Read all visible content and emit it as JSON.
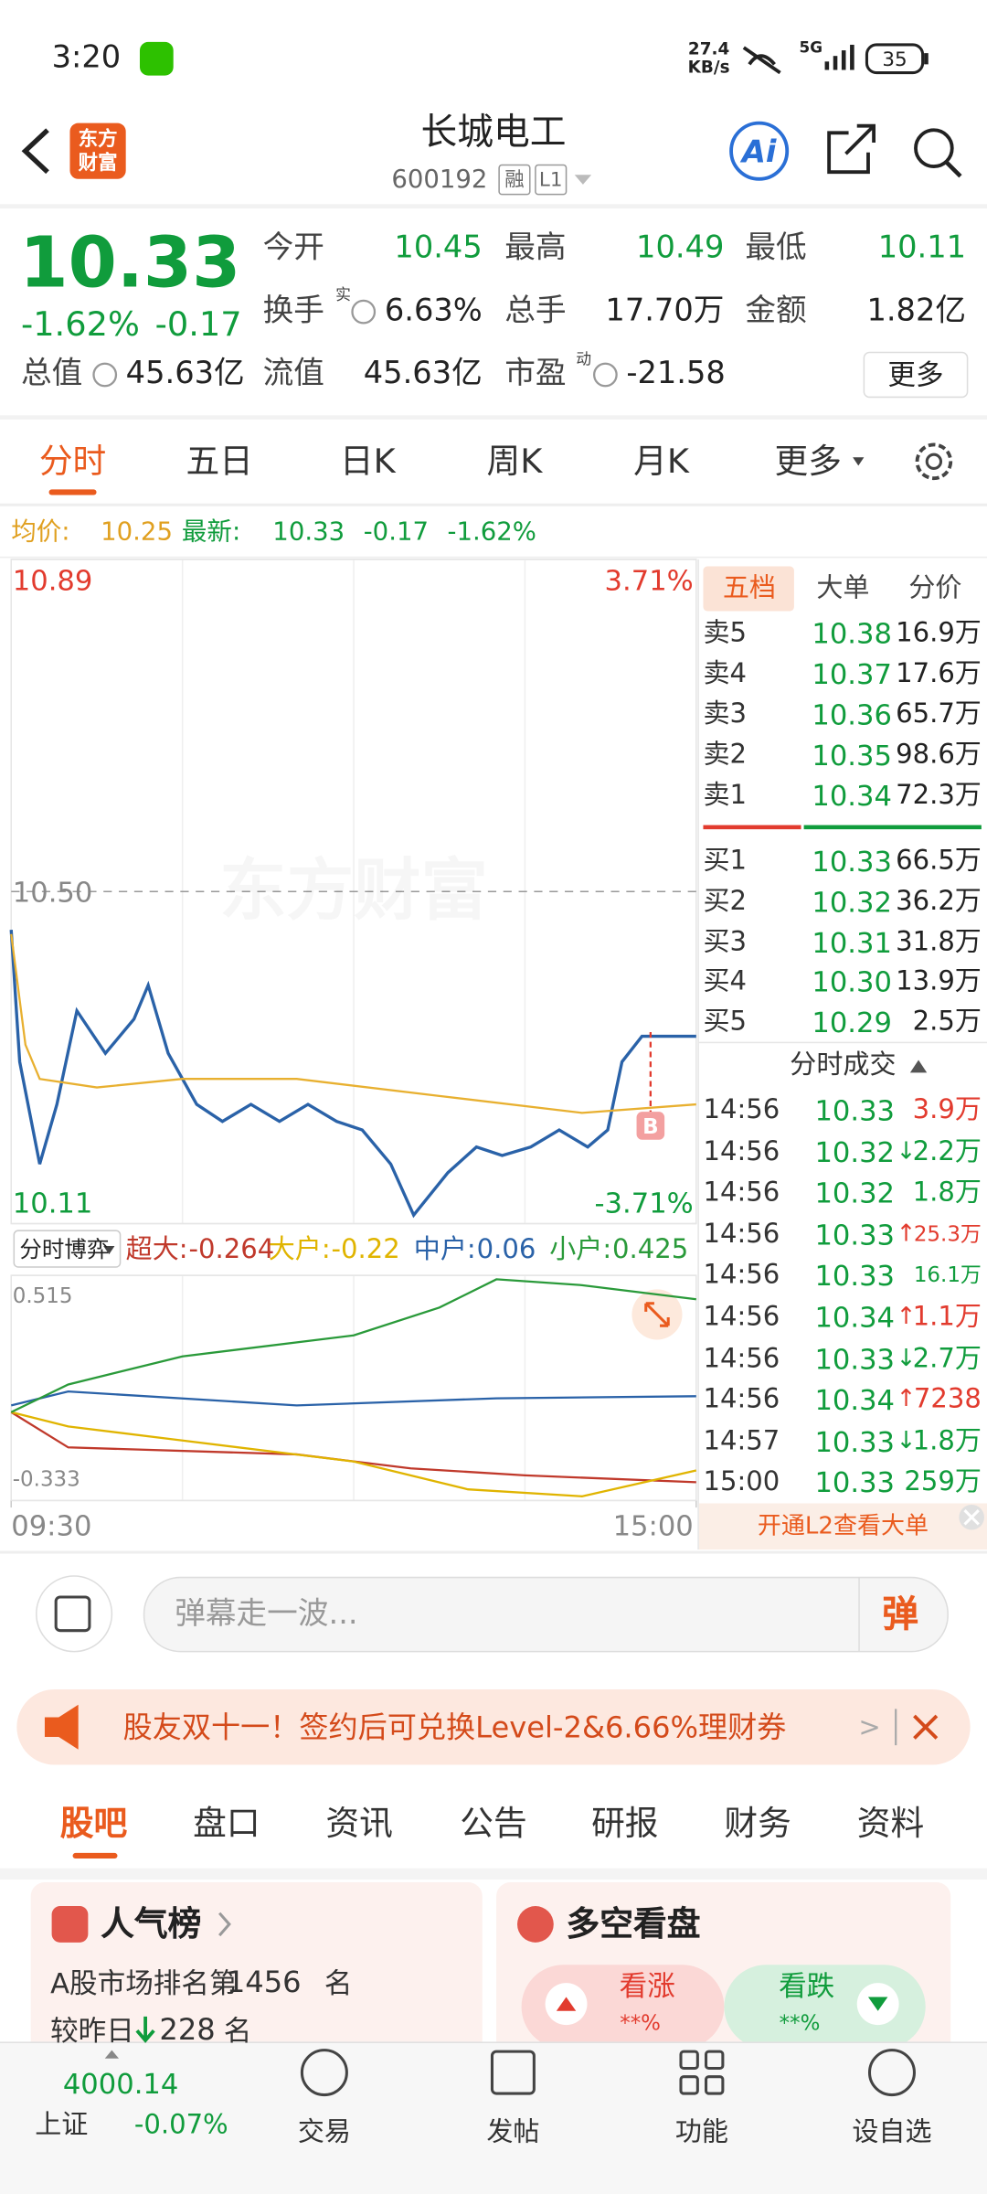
{
  "status_bar": {
    "time": "3:20",
    "net_speed": [
      "27.4",
      "KB/s"
    ],
    "network": "5G",
    "battery": "35"
  },
  "header": {
    "logo": [
      "东方",
      "财富"
    ],
    "title": "长城电工",
    "code": "600192",
    "tags": [
      "融",
      "L1"
    ]
  },
  "quote": {
    "price": "10.33",
    "change_pct": "-1.62%",
    "change": "-0.17",
    "stats": [
      {
        "label": "今开",
        "value": "10.45",
        "color": "#109c3c"
      },
      {
        "label": "最高",
        "value": "10.49",
        "color": "#109c3c"
      },
      {
        "label": "最低",
        "value": "10.11",
        "color": "#109c3c"
      },
      {
        "label": "换手",
        "sup": "实",
        "value": "6.63%"
      },
      {
        "label": "总手",
        "value": "17.70万"
      },
      {
        "label": "金额",
        "value": "1.82亿"
      },
      {
        "label": "总值",
        "value": "45.63亿"
      },
      {
        "label": "流值",
        "value": "45.63亿"
      },
      {
        "label": "市盈",
        "sup": "动",
        "value": "-21.58"
      }
    ],
    "more_button": "更多"
  },
  "period_tabs": [
    "分时",
    "五日",
    "日K",
    "周K",
    "月K",
    "更多"
  ],
  "summary": {
    "avg_label": "均价:",
    "avg": "10.25",
    "latest_label": "最新:",
    "latest": "10.33",
    "change": "-0.17",
    "change_pct": "-1.62%"
  },
  "watermark": "东方财富",
  "chart_data": [
    {
      "type": "line",
      "xlim": [
        0,
        240
      ],
      "xticks": [
        {
          "value": 0,
          "label": "09:30"
        },
        {
          "value": 240,
          "label": "15:00"
        }
      ],
      "ylim": [
        10.11,
        10.89
      ],
      "yticks": [
        10.89,
        {
          "value": 10.5,
          "label": "10.50"
        },
        10.11
      ],
      "y2lim": [
        -3.71,
        3.71
      ],
      "y2ticks": [
        {
          "value": 3.71,
          "label": "3.71%"
        },
        {
          "value": -3.71,
          "label": "-3.71%"
        }
      ],
      "grid": true,
      "series": [
        {
          "color": "#2a62a8",
          "x": [
            0,
            3,
            10,
            16,
            23,
            33,
            43,
            48,
            55,
            65,
            74,
            84,
            94,
            104,
            114,
            123,
            133,
            141,
            153,
            163,
            172,
            182,
            192,
            202,
            209,
            214,
            221,
            229,
            240
          ],
          "values": [
            10.455,
            10.3,
            10.18,
            10.25,
            10.36,
            10.31,
            10.35,
            10.39,
            10.31,
            10.25,
            10.23,
            10.25,
            10.23,
            10.25,
            10.23,
            10.22,
            10.18,
            10.12,
            10.17,
            10.2,
            10.19,
            10.2,
            10.22,
            10.2,
            10.22,
            10.3,
            10.33,
            10.33,
            10.33
          ]
        },
        {
          "color": "#e8b030",
          "x": [
            0,
            5,
            10,
            30,
            60,
            100,
            150,
            200,
            240
          ],
          "values": [
            10.45,
            10.32,
            10.28,
            10.27,
            10.28,
            10.28,
            10.26,
            10.24,
            10.25
          ]
        }
      ],
      "annotations": [
        {
          "text": "B",
          "x": 224
        }
      ]
    },
    {
      "type": "line",
      "title": "分时博弈",
      "legend_separator": ":",
      "xlim": [
        0,
        240
      ],
      "ylim": [
        -0.333,
        0.515
      ],
      "yticks": [
        0.515,
        -0.333
      ],
      "grid": true,
      "series": [
        {
          "name": "超大",
          "color": "#c0392b",
          "last_value": -0.264,
          "x": [
            0,
            20,
            100,
            140,
            180,
            240
          ],
          "values": [
            0,
            -0.133,
            -0.159,
            -0.212,
            -0.238,
            -0.264
          ]
        },
        {
          "name": "大户",
          "color": "#e0b400",
          "last_value": -0.22,
          "x": [
            0,
            20,
            60,
            120,
            160,
            200,
            240
          ],
          "values": [
            0,
            -0.054,
            -0.107,
            -0.186,
            -0.291,
            -0.317,
            -0.22
          ]
        },
        {
          "name": "中户",
          "color": "#2a62a8",
          "last_value": 0.06,
          "x": [
            0,
            20,
            100,
            170,
            240
          ],
          "values": [
            0.025,
            0.078,
            0.025,
            0.052,
            0.06
          ]
        },
        {
          "name": "小户",
          "color": "#2a9a3a",
          "last_value": 0.425,
          "x": [
            0,
            20,
            60,
            120,
            150,
            170,
            200,
            240
          ],
          "values": [
            0,
            0.104,
            0.21,
            0.289,
            0.394,
            0.5,
            0.478,
            0.425
          ]
        }
      ]
    }
  ],
  "order_book": {
    "tabs": [
      "五档",
      "大单",
      "分价"
    ],
    "asks": [
      {
        "label": "卖5",
        "price": "10.38",
        "volume": "16.9万"
      },
      {
        "label": "卖4",
        "price": "10.37",
        "volume": "17.6万"
      },
      {
        "label": "卖3",
        "price": "10.36",
        "volume": "65.7万"
      },
      {
        "label": "卖2",
        "price": "10.35",
        "volume": "98.6万"
      },
      {
        "label": "卖1",
        "price": "10.34",
        "volume": "72.3万"
      }
    ],
    "bids": [
      {
        "label": "买1",
        "price": "10.33",
        "volume": "66.5万"
      },
      {
        "label": "买2",
        "price": "10.32",
        "volume": "36.2万"
      },
      {
        "label": "买3",
        "price": "10.31",
        "volume": "31.8万"
      },
      {
        "label": "买4",
        "price": "10.30",
        "volume": "13.9万"
      },
      {
        "label": "买5",
        "price": "10.29",
        "volume": "2.5万"
      }
    ]
  },
  "trades": {
    "title": "分时成交",
    "rows": [
      {
        "time": "14:56",
        "price": "10.33",
        "volume": "3.9万",
        "color": "#e23b2e"
      },
      {
        "time": "14:56",
        "price": "10.32",
        "dir": "↓",
        "volume": "2.2万",
        "color": "#109c3c"
      },
      {
        "time": "14:56",
        "price": "10.32",
        "volume": "1.8万",
        "color": "#109c3c"
      },
      {
        "time": "14:56",
        "price": "10.33",
        "dir": "↑",
        "volume": "25.3万",
        "color": "#e23b2e"
      },
      {
        "time": "14:56",
        "price": "10.33",
        "volume": "16.1万",
        "color": "#109c3c"
      },
      {
        "time": "14:56",
        "price": "10.34",
        "dir": "↑",
        "volume": "1.1万",
        "color": "#e23b2e"
      },
      {
        "time": "14:56",
        "price": "10.33",
        "dir": "↓",
        "volume": "2.7万",
        "color": "#109c3c"
      },
      {
        "time": "14:56",
        "price": "10.34",
        "dir": "↑",
        "volume": "7238",
        "color": "#e23b2e"
      },
      {
        "time": "14:57",
        "price": "10.33",
        "dir": "↓",
        "volume": "1.8万",
        "color": "#109c3c"
      },
      {
        "time": "15:00",
        "price": "10.33",
        "volume": "259万",
        "color": "#109c3c"
      }
    ],
    "l2_prompt": "开通L2查看大单"
  },
  "danmaku": {
    "placeholder": "弹幕走一波...",
    "button": "弹"
  },
  "banner": {
    "text": "股友双十一！签约后可兑换Level-2&6.66%理财券",
    "chevron": ">"
  },
  "forum_tabs": [
    "股吧",
    "盘口",
    "资讯",
    "公告",
    "研报",
    "财务",
    "资料"
  ],
  "cards": {
    "popularity": {
      "title": "人气榜",
      "line1_prefix": "A股市场排名第",
      "rank": "1456",
      "line1_suffix": "名",
      "line2_prefix": "较昨日",
      "change": "228",
      "line2_suffix": "名"
    },
    "sentiment": {
      "title": "多空看盘",
      "bull": "看涨",
      "bull_pct": "**%",
      "bear": "看跌",
      "bear_pct": "**%"
    }
  },
  "bottom_nav": {
    "index": {
      "value": "4000.14",
      "name": "上证",
      "change": "-0.07%"
    },
    "items": [
      "交易",
      "发帖",
      "功能",
      "设自选"
    ]
  }
}
